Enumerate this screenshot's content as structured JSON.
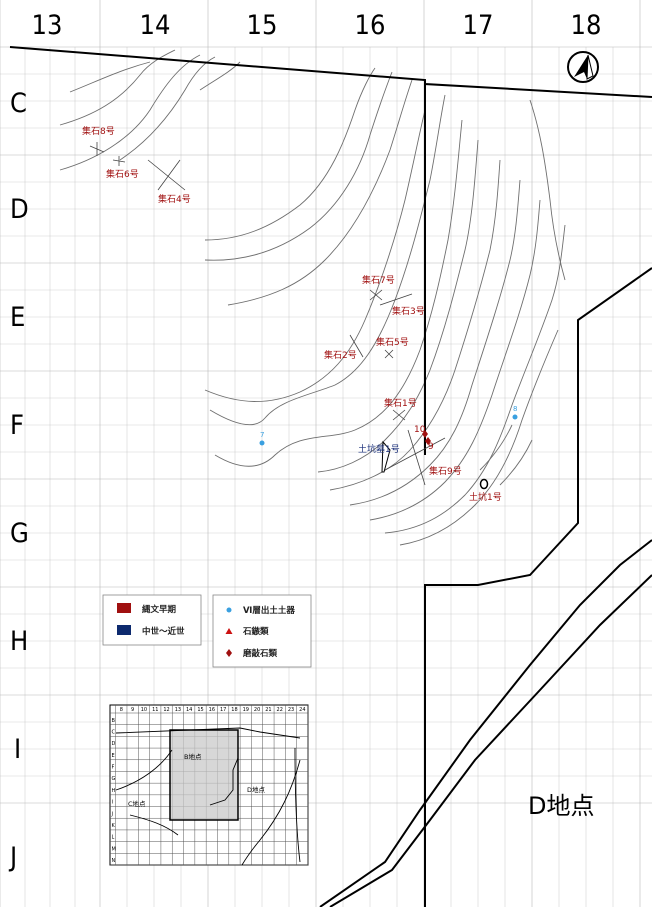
{
  "grid": {
    "columns": [
      "13",
      "14",
      "15",
      "16",
      "17",
      "18"
    ],
    "rows": [
      "C",
      "D",
      "E",
      "F",
      "G",
      "H",
      "I",
      "J"
    ]
  },
  "north_arrow": {
    "icon": "north-arrow-icon"
  },
  "features": [
    {
      "label": "集石8号",
      "color": "#a01010"
    },
    {
      "label": "集石6号",
      "color": "#a01010"
    },
    {
      "label": "集石4号",
      "color": "#a01010"
    },
    {
      "label": "集石7号",
      "color": "#a01010"
    },
    {
      "label": "集石3号",
      "color": "#a01010"
    },
    {
      "label": "集石5号",
      "color": "#a01010"
    },
    {
      "label": "集石2号",
      "color": "#a01010"
    },
    {
      "label": "集石1号",
      "color": "#a01010"
    },
    {
      "label": "土坑墓1号",
      "color": "#1a2f7a"
    },
    {
      "label": "集石9号",
      "color": "#a01010"
    },
    {
      "label": "土坑1号",
      "color": "#a01010"
    }
  ],
  "find_labels": [
    "7",
    "8",
    "10",
    "9"
  ],
  "legend": {
    "periods": [
      {
        "label": "縄文早期",
        "color": "#a01010"
      },
      {
        "label": "中世～近世",
        "color": "#0d2a6e"
      }
    ],
    "finds": [
      {
        "label": "Ⅵ層出土土器",
        "icon": "circle-dot-icon",
        "color": "#3aa0e0"
      },
      {
        "label": "石鏃類",
        "icon": "triangle-icon",
        "color": "#cc1111"
      },
      {
        "label": "磨敲石類",
        "icon": "diamond-icon",
        "color": "#a01010"
      }
    ]
  },
  "inset": {
    "col_numbers": [
      "8",
      "9",
      "10",
      "11",
      "12",
      "13",
      "14",
      "15",
      "16",
      "17",
      "18",
      "19",
      "20",
      "21",
      "22",
      "23",
      "24"
    ],
    "row_letters": [
      "B",
      "C",
      "D",
      "E",
      "F",
      "G",
      "H",
      "I",
      "J",
      "K",
      "L",
      "M",
      "N"
    ],
    "areas": {
      "b": "B地点",
      "c": "C地点",
      "d": "D地点"
    }
  },
  "site_label": "D地点"
}
